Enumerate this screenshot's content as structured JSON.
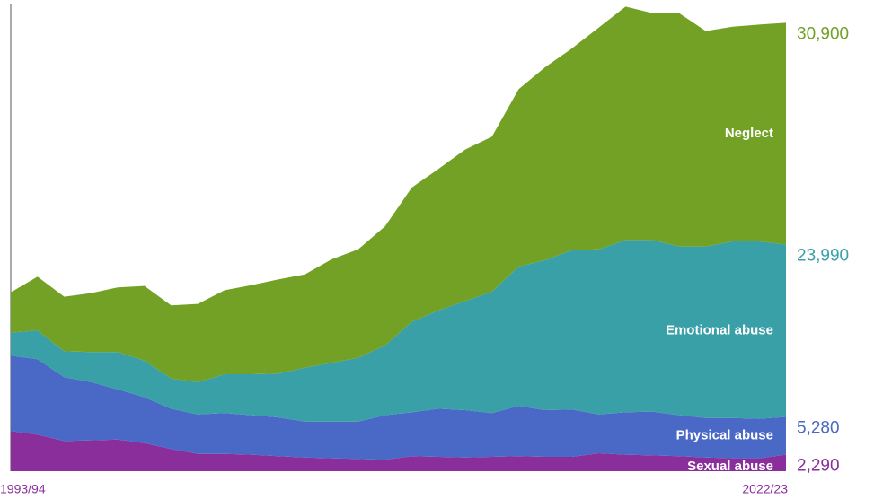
{
  "chart_data": {
    "type": "area",
    "stacked": true,
    "categories": [
      "1993/94",
      null,
      null,
      null,
      null,
      null,
      null,
      null,
      null,
      null,
      null,
      null,
      null,
      null,
      null,
      null,
      null,
      null,
      null,
      null,
      null,
      null,
      null,
      null,
      null,
      null,
      null,
      null,
      null,
      "2022/23"
    ],
    "ylim": [
      0,
      65000
    ],
    "series": [
      {
        "name": "Sexual abuse",
        "color": "#8a2e9c",
        "values": [
          5600,
          5100,
          4200,
          4300,
          4400,
          3900,
          3100,
          2400,
          2400,
          2300,
          2100,
          1900,
          1800,
          1700,
          1600,
          2100,
          2000,
          1900,
          2000,
          2100,
          2000,
          2000,
          2500,
          2300,
          2200,
          2100,
          1900,
          1800,
          1800,
          2290
        ],
        "value_labels": [
          null,
          null,
          null,
          null,
          null,
          null,
          null,
          null,
          null,
          null,
          null,
          null,
          null,
          null,
          null,
          null,
          null,
          null,
          null,
          null,
          null,
          null,
          null,
          null,
          null,
          null,
          null,
          null,
          null,
          "2,290"
        ]
      },
      {
        "name": "Physical abuse",
        "color": "#4a68c5",
        "values": [
          10500,
          10500,
          8900,
          8100,
          7000,
          6400,
          5600,
          5500,
          5700,
          5500,
          5400,
          5000,
          5100,
          5200,
          6200,
          6100,
          6700,
          6600,
          6100,
          7000,
          6500,
          6600,
          5400,
          5900,
          6100,
          5700,
          5500,
          5600,
          5500,
          5280
        ],
        "value_labels": [
          null,
          null,
          null,
          null,
          null,
          null,
          null,
          null,
          null,
          null,
          null,
          null,
          null,
          null,
          null,
          null,
          null,
          null,
          null,
          null,
          null,
          null,
          null,
          null,
          null,
          null,
          null,
          null,
          null,
          "5,280"
        ]
      },
      {
        "name": "Emotional abuse",
        "color": "#3aa0a8",
        "values": [
          3200,
          4000,
          3600,
          4200,
          5200,
          5100,
          4200,
          4500,
          5400,
          5700,
          6100,
          7500,
          8200,
          8900,
          9700,
          12600,
          13700,
          15200,
          16900,
          19400,
          20900,
          22200,
          23000,
          24000,
          23900,
          23500,
          23900,
          24600,
          24700,
          23990
        ],
        "value_labels": [
          null,
          null,
          null,
          null,
          null,
          null,
          null,
          null,
          null,
          null,
          null,
          null,
          null,
          null,
          null,
          null,
          null,
          null,
          null,
          null,
          null,
          null,
          null,
          null,
          null,
          null,
          null,
          null,
          null,
          "23,990"
        ]
      },
      {
        "name": "Neglect",
        "color": "#72a125",
        "values": [
          5600,
          7500,
          7600,
          8200,
          9000,
          10400,
          10200,
          10900,
          11700,
          12400,
          13100,
          13000,
          14400,
          15100,
          16600,
          18700,
          19700,
          21100,
          21600,
          24700,
          26900,
          28100,
          30900,
          32500,
          31600,
          32500,
          30000,
          29900,
          30200,
          30900
        ],
        "value_labels": [
          null,
          null,
          null,
          null,
          null,
          null,
          null,
          null,
          null,
          null,
          null,
          null,
          null,
          null,
          null,
          null,
          null,
          null,
          null,
          null,
          null,
          null,
          null,
          null,
          null,
          null,
          null,
          null,
          null,
          "30,900"
        ]
      }
    ]
  }
}
